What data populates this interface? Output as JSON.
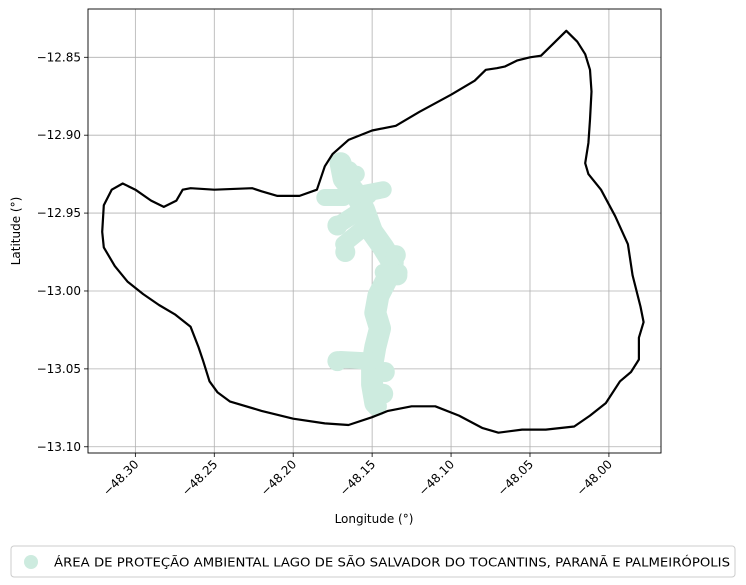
{
  "chart_data": {
    "type": "map",
    "title": "",
    "xlabel": "Longitude (°)",
    "ylabel": "Latitude (°)",
    "xlim": [
      -48.33,
      -47.967
    ],
    "ylim": [
      -13.104,
      -12.819
    ],
    "xticks": [
      -48.3,
      -48.25,
      -48.2,
      -48.15,
      -48.1,
      -48.05,
      -48.0
    ],
    "xtick_labels": [
      "−48.30",
      "−48.25",
      "−48.20",
      "−48.15",
      "−48.10",
      "−48.05",
      "−48.00"
    ],
    "yticks": [
      -12.85,
      -12.9,
      -12.95,
      -13.0,
      -13.05,
      -13.1
    ],
    "ytick_labels": [
      "−12.85",
      "−12.90",
      "−12.95",
      "−13.00",
      "−13.05",
      "−13.10"
    ],
    "grid": true,
    "legend_position": "bottom",
    "boundary": {
      "color": "#000000",
      "coords": [
        [
          -48.027,
          -12.833
        ],
        [
          -48.02,
          -12.84
        ],
        [
          -48.015,
          -12.848
        ],
        [
          -48.012,
          -12.858
        ],
        [
          -48.011,
          -12.872
        ],
        [
          -48.012,
          -12.89
        ],
        [
          -48.013,
          -12.905
        ],
        [
          -48.015,
          -12.918
        ],
        [
          -48.013,
          -12.925
        ],
        [
          -48.005,
          -12.935
        ],
        [
          -47.996,
          -12.952
        ],
        [
          -47.988,
          -12.97
        ],
        [
          -47.985,
          -12.99
        ],
        [
          -47.98,
          -13.01
        ],
        [
          -47.978,
          -13.02
        ],
        [
          -47.981,
          -13.03
        ],
        [
          -47.981,
          -13.044
        ],
        [
          -47.986,
          -13.052
        ],
        [
          -47.993,
          -13.058
        ],
        [
          -48.002,
          -13.072
        ],
        [
          -48.012,
          -13.08
        ],
        [
          -48.022,
          -13.087
        ],
        [
          -48.04,
          -13.089
        ],
        [
          -48.055,
          -13.089
        ],
        [
          -48.07,
          -13.091
        ],
        [
          -48.08,
          -13.088
        ],
        [
          -48.095,
          -13.08
        ],
        [
          -48.11,
          -13.074
        ],
        [
          -48.125,
          -13.074
        ],
        [
          -48.14,
          -13.077
        ],
        [
          -48.15,
          -13.081
        ],
        [
          -48.165,
          -13.086
        ],
        [
          -48.18,
          -13.085
        ],
        [
          -48.2,
          -13.082
        ],
        [
          -48.22,
          -13.077
        ],
        [
          -48.24,
          -13.071
        ],
        [
          -48.248,
          -13.065
        ],
        [
          -48.253,
          -13.058
        ],
        [
          -48.257,
          -13.045
        ],
        [
          -48.26,
          -13.036
        ],
        [
          -48.265,
          -13.023
        ],
        [
          -48.275,
          -13.015
        ],
        [
          -48.285,
          -13.009
        ],
        [
          -48.295,
          -13.002
        ],
        [
          -48.305,
          -12.994
        ],
        [
          -48.313,
          -12.984
        ],
        [
          -48.32,
          -12.972
        ],
        [
          -48.321,
          -12.962
        ],
        [
          -48.32,
          -12.945
        ],
        [
          -48.315,
          -12.935
        ],
        [
          -48.308,
          -12.931
        ],
        [
          -48.3,
          -12.935
        ],
        [
          -48.29,
          -12.942
        ],
        [
          -48.282,
          -12.946
        ],
        [
          -48.274,
          -12.942
        ],
        [
          -48.27,
          -12.935
        ],
        [
          -48.265,
          -12.934
        ],
        [
          -48.25,
          -12.935
        ],
        [
          -48.226,
          -12.934
        ],
        [
          -48.22,
          -12.936
        ],
        [
          -48.21,
          -12.939
        ],
        [
          -48.196,
          -12.939
        ],
        [
          -48.185,
          -12.935
        ],
        [
          -48.18,
          -12.92
        ],
        [
          -48.175,
          -12.912
        ],
        [
          -48.165,
          -12.903
        ],
        [
          -48.15,
          -12.897
        ],
        [
          -48.135,
          -12.894
        ],
        [
          -48.12,
          -12.885
        ],
        [
          -48.1,
          -12.874
        ],
        [
          -48.085,
          -12.865
        ],
        [
          -48.078,
          -12.858
        ],
        [
          -48.071,
          -12.857
        ],
        [
          -48.066,
          -12.856
        ],
        [
          -48.058,
          -12.852
        ],
        [
          -48.05,
          -12.85
        ],
        [
          -48.043,
          -12.849
        ],
        [
          -48.036,
          -12.842
        ],
        [
          -48.027,
          -12.833
        ]
      ]
    },
    "protected_area": {
      "name": "ÁREA DE PROTEÇÃO AMBIENTAL LAGO DE SÃO SALVADOR DO TOCANTINS, PARANÃ E PALMEIRÓPOLIS",
      "color": "#cdebdf",
      "centerline": [
        [
          -48.17,
          -12.918
        ],
        [
          -48.168,
          -12.928
        ],
        [
          -48.16,
          -12.938
        ],
        [
          -48.155,
          -12.948
        ],
        [
          -48.15,
          -12.962
        ],
        [
          -48.143,
          -12.972
        ],
        [
          -48.137,
          -12.982
        ],
        [
          -48.141,
          -12.993
        ],
        [
          -48.146,
          -13.003
        ],
        [
          -48.148,
          -13.014
        ],
        [
          -48.145,
          -13.024
        ],
        [
          -48.148,
          -13.036
        ],
        [
          -48.15,
          -13.048
        ],
        [
          -48.15,
          -13.06
        ],
        [
          -48.148,
          -13.072
        ]
      ],
      "branches": [
        [
          [
            -48.168,
            -12.93
          ],
          [
            -48.16,
            -12.925
          ]
        ],
        [
          [
            -48.168,
            -12.94
          ],
          [
            -48.18,
            -12.94
          ]
        ],
        [
          [
            -48.158,
            -12.938
          ],
          [
            -48.143,
            -12.935
          ]
        ],
        [
          [
            -48.16,
            -12.95
          ],
          [
            -48.172,
            -12.958
          ]
        ],
        [
          [
            -48.156,
            -12.96
          ],
          [
            -48.168,
            -12.97
          ]
        ],
        [
          [
            -48.143,
            -12.975
          ],
          [
            -48.135,
            -12.979
          ]
        ],
        [
          [
            -48.143,
            -12.988
          ],
          [
            -48.133,
            -12.988
          ]
        ],
        [
          [
            -48.15,
            -13.045
          ],
          [
            -48.17,
            -13.044
          ]
        ]
      ],
      "blobs": [
        [
          -48.165,
          -12.923
        ],
        [
          -48.153,
          -12.938
        ],
        [
          -48.172,
          -12.958
        ],
        [
          -48.167,
          -12.975
        ],
        [
          -48.135,
          -12.977
        ],
        [
          -48.134,
          -12.99
        ],
        [
          -48.172,
          -13.045
        ],
        [
          -48.142,
          -13.052
        ],
        [
          -48.143,
          -13.066
        ],
        [
          -48.147,
          -13.074
        ]
      ]
    }
  },
  "legend": {
    "label": "ÁREA DE PROTEÇÃO AMBIENTAL LAGO DE SÃO SALVADOR DO TOCANTINS, PARANÃ E PALMEIRÓPOLIS"
  }
}
